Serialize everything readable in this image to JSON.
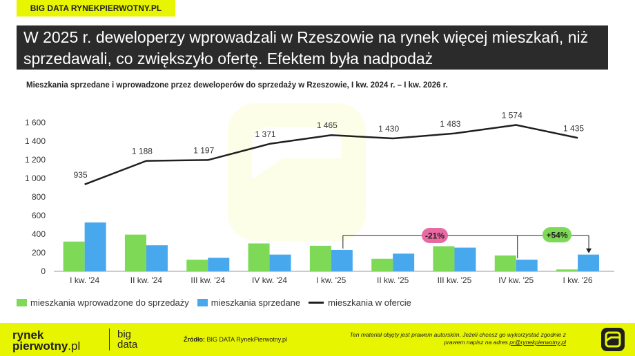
{
  "tag": "BIG DATA RYNEKPIERWOTNY.PL",
  "headline": "W 2025 r. deweloperzy wprowadzali w Rzeszowie na rynek więcej mieszkań, niż sprzedawali, co zwiększyło ofertę. Efektem była nadpodaż",
  "colors": {
    "green": "#7ed957",
    "blue": "#47a8ee",
    "line": "#1f1f1f",
    "accent_yellow": "#e8f500",
    "badge_pink": "#e86aa2",
    "badge_green": "#7ed957"
  },
  "chart_data": {
    "type": "bar",
    "title": "Mieszkania sprzedane i wprowadzone przez deweloperów do sprzedaży w Rzeszowie, I kw. 2024 r. – I kw. 2026 r.",
    "categories": [
      "I kw. '24",
      "II kw. '24",
      "III kw. '24",
      "IV kw. '24",
      "I kw. '25",
      "II kw. '25",
      "III kw. '25",
      "IV kw. '25",
      "I kw. '26"
    ],
    "ylim": [
      0,
      1600
    ],
    "yticks": [
      "0",
      "200",
      "400",
      "600",
      "800",
      "1 000",
      "1 200",
      "1 400",
      "1 600"
    ],
    "yticks_values": [
      0,
      200,
      400,
      600,
      800,
      1000,
      1200,
      1400,
      1600
    ],
    "grid": false,
    "legend_position": "bottom-left",
    "series": [
      {
        "name": "mieszkania wprowadzone do sprzedaży",
        "type": "bar",
        "color": "#7ed957",
        "values": [
          320,
          395,
          125,
          300,
          275,
          135,
          270,
          170,
          20
        ]
      },
      {
        "name": "mieszkania sprzedane",
        "type": "bar",
        "color": "#47a8ee",
        "values": [
          525,
          280,
          145,
          180,
          230,
          190,
          255,
          125,
          180
        ]
      },
      {
        "name": "mieszkania w ofercie",
        "type": "line",
        "color": "#1f1f1f",
        "values": [
          935,
          1188,
          1197,
          1371,
          1465,
          1430,
          1483,
          1574,
          1435
        ],
        "labels": [
          "935",
          "1 188",
          "1 197",
          "1 371",
          "1 465",
          "1 430",
          "1 483",
          "1 574",
          "1 435"
        ]
      }
    ],
    "annotations": [
      {
        "text": "-21%",
        "color": "#e86aa2"
      },
      {
        "text": "+54%",
        "color": "#7ed957"
      }
    ]
  },
  "footer": {
    "logo_line1": "rynek",
    "logo_line2": "pierwotny",
    "logo_suffix": ".pl",
    "logo2_line1": "big",
    "logo2_line2": "data",
    "source_label": "Źródło:",
    "source_text": "BIG DATA RynekPierwotny.pl",
    "copyright_text": "Ten materiał objęty jest prawem autorskim. Jeżeli chcesz go wykorzystać zgodnie z prawem napisz na adres",
    "copyright_email": "pr@rynekpierwotny.pl"
  }
}
